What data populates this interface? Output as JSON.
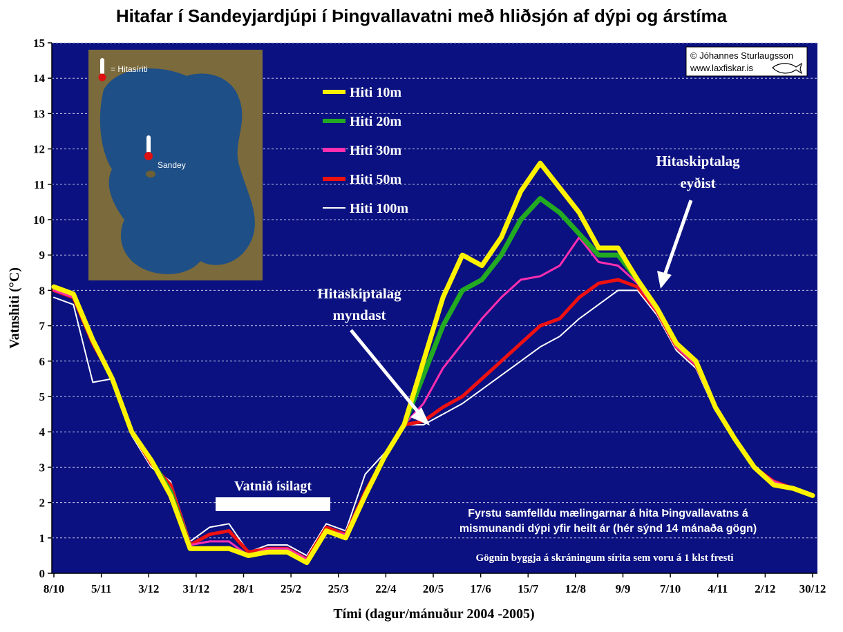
{
  "title": "Hitafar í Sandeyjardjúpi í Þingvallavatni með hliðsjón af dýpi og árstíma",
  "colors": {
    "plot_bg": "#0b1180",
    "grid": "#c9cce8",
    "hiti_10m": "#fff200",
    "hiti_20m": "#22aa22",
    "hiti_30m": "#ff2fb0",
    "hiti_50m": "#ee1111",
    "hiti_100m": "#ffffff"
  },
  "annotations": {
    "stratification_forms_line1": "Hitaskiptalag",
    "stratification_forms_line2": "myndast",
    "stratification_breaks_line1": "Hitaskiptalag",
    "stratification_breaks_line2": "eyðist",
    "ice_label": "Vatnið ísilagt",
    "note_line1": "Fyrstu samfelldu mælingarnar á hita Þingvallavatns á",
    "note_line2": "mismunandi dýpi yfir heilt ár (hér sýnd 14 mánaða gögn)",
    "note_line3": "Gögnin byggja á skráningum sírita sem voru á 1 klst fresti",
    "credit_line1": "© Jóhannes Sturlaugsson",
    "credit_line2": "www.laxfiskar.is"
  },
  "map": {
    "legend_text": "= Hitasíriti",
    "place_label": "Sandey"
  },
  "chart_data": {
    "type": "line",
    "title": "Hitafar í Sandeyjardjúpi í Þingvallavatni með hliðsjón af dýpi og árstíma",
    "xlabel": "Tími (dagur/mánuður 2004 -2005)",
    "ylabel": "Vatnshiti (°C)",
    "ylim": [
      0,
      15
    ],
    "yticks": [
      "0",
      "1",
      "2",
      "3",
      "4",
      "5",
      "6",
      "7",
      "8",
      "9",
      "10",
      "11",
      "12",
      "13",
      "14",
      "15"
    ],
    "x_tick_labels": [
      "8/10",
      "5/11",
      "3/12",
      "31/12",
      "28/1",
      "25/2",
      "25/3",
      "22/4",
      "20/5",
      "17/6",
      "15/7",
      "12/8",
      "9/9",
      "7/10",
      "4/11",
      "2/12",
      "30/12"
    ],
    "grid": true,
    "legend_position": "top-left, inside plot",
    "series": [
      {
        "name": "Hiti 10m",
        "color_key": "hiti_10m",
        "values": [
          8.1,
          7.9,
          6.6,
          5.5,
          4.0,
          3.2,
          2.2,
          0.7,
          0.7,
          0.7,
          0.5,
          0.6,
          0.6,
          0.3,
          1.2,
          1.0,
          2.2,
          3.3,
          4.2,
          6.0,
          7.8,
          9.0,
          8.7,
          9.5,
          10.8,
          11.6,
          10.9,
          10.2,
          9.2,
          9.2,
          8.3,
          7.5,
          6.5,
          6.0,
          4.7,
          3.8,
          3.0,
          2.5,
          2.4,
          2.2
        ]
      },
      {
        "name": "Hiti 20m",
        "color_key": "hiti_20m",
        "values": [
          8.1,
          7.9,
          6.6,
          5.5,
          4.0,
          3.2,
          2.3,
          0.7,
          0.7,
          0.7,
          0.5,
          0.6,
          0.6,
          0.3,
          1.2,
          1.0,
          2.2,
          3.3,
          4.2,
          5.6,
          7.0,
          8.0,
          8.3,
          9.0,
          10.0,
          10.6,
          10.2,
          9.6,
          9.0,
          9.0,
          8.3,
          7.5,
          6.5,
          6.0,
          4.7,
          3.8,
          3.0,
          2.5,
          2.4,
          2.2
        ]
      },
      {
        "name": "Hiti 30m",
        "color_key": "hiti_30m",
        "values": [
          8.0,
          7.8,
          6.5,
          5.5,
          4.0,
          3.1,
          2.4,
          0.8,
          0.9,
          0.9,
          0.5,
          0.7,
          0.7,
          0.4,
          1.2,
          1.1,
          2.3,
          3.3,
          4.2,
          4.8,
          5.8,
          6.5,
          7.2,
          7.8,
          8.3,
          8.4,
          8.7,
          9.5,
          8.8,
          8.7,
          8.2,
          7.4,
          6.4,
          5.9,
          4.7,
          3.8,
          3.0,
          2.6,
          2.4,
          2.2
        ]
      },
      {
        "name": "Hiti 50m",
        "color_key": "hiti_50m",
        "values": [
          8.0,
          7.8,
          6.5,
          5.5,
          4.0,
          3.1,
          2.5,
          0.8,
          1.1,
          1.2,
          0.6,
          0.7,
          0.7,
          0.4,
          1.3,
          1.1,
          2.3,
          3.3,
          4.2,
          4.3,
          4.7,
          5.0,
          5.5,
          6.0,
          6.5,
          7.0,
          7.2,
          7.8,
          8.2,
          8.3,
          8.1,
          7.4,
          6.4,
          5.9,
          4.7,
          3.8,
          3.0,
          2.6,
          2.4,
          2.2
        ]
      },
      {
        "name": "Hiti 100m",
        "color_key": "hiti_100m",
        "values": [
          7.8,
          7.6,
          5.4,
          5.5,
          3.9,
          3.0,
          2.6,
          0.9,
          1.3,
          1.4,
          0.6,
          0.8,
          0.8,
          0.5,
          1.4,
          1.2,
          2.8,
          3.4,
          4.2,
          4.2,
          4.5,
          4.8,
          5.2,
          5.6,
          6.0,
          6.4,
          6.7,
          7.2,
          7.6,
          8.0,
          8.0,
          7.3,
          6.3,
          5.8,
          4.6,
          3.8,
          3.0,
          2.6,
          2.4,
          2.2
        ]
      }
    ]
  }
}
